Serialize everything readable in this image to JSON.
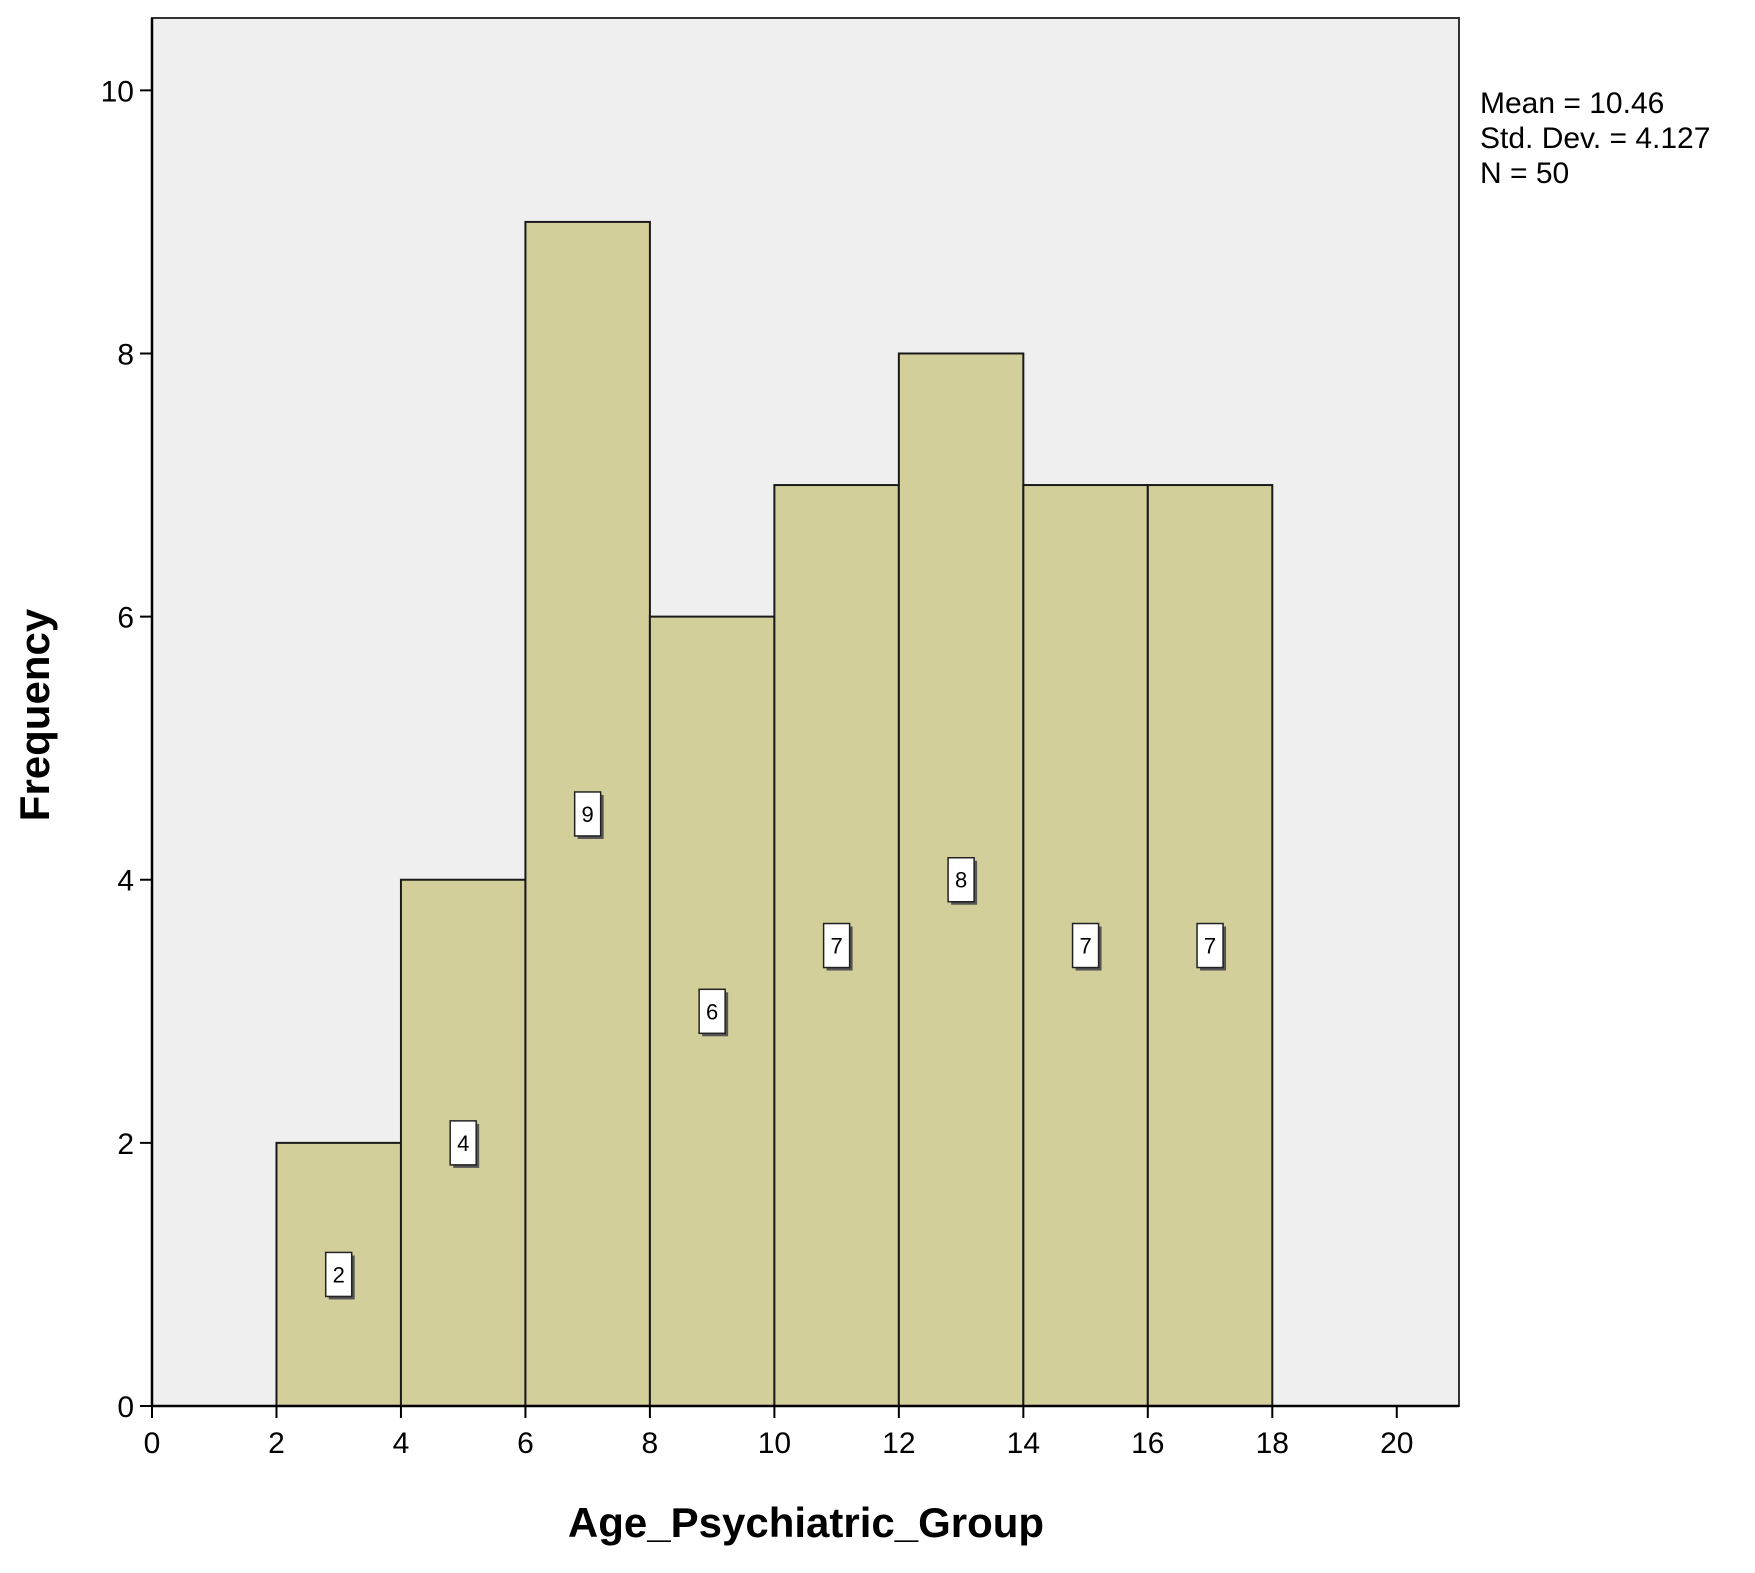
{
  "chart_data": {
    "type": "bar",
    "subtype": "histogram",
    "xlabel": "Age_Psychiatric_Group",
    "ylabel": "Frequency",
    "xlim": [
      0,
      21
    ],
    "ylim": [
      0,
      10.55
    ],
    "x_ticks": [
      "0",
      "2",
      "4",
      "6",
      "8",
      "10",
      "12",
      "14",
      "16",
      "18",
      "20"
    ],
    "y_ticks": [
      "0",
      "2",
      "4",
      "6",
      "8",
      "10"
    ],
    "bins": [
      {
        "x0": 2,
        "x1": 4,
        "value": 2,
        "label": "2"
      },
      {
        "x0": 4,
        "x1": 6,
        "value": 4,
        "label": "4"
      },
      {
        "x0": 6,
        "x1": 8,
        "value": 9,
        "label": "9"
      },
      {
        "x0": 8,
        "x1": 10,
        "value": 6,
        "label": "6"
      },
      {
        "x0": 10,
        "x1": 12,
        "value": 7,
        "label": "7"
      },
      {
        "x0": 12,
        "x1": 14,
        "value": 8,
        "label": "8"
      },
      {
        "x0": 14,
        "x1": 16,
        "value": 7,
        "label": "7"
      },
      {
        "x0": 16,
        "x1": 18,
        "value": 7,
        "label": "7"
      }
    ],
    "stats": {
      "mean": "Mean = 10.46",
      "std_dev": "Std. Dev. = 4.127",
      "n": "N = 50"
    },
    "grid": false,
    "colors": {
      "plot_background": "#efefef",
      "bar_fill": "#d3cf9a",
      "bar_stroke": "#1a1a1a",
      "label_box_fill": "#ffffff"
    }
  }
}
